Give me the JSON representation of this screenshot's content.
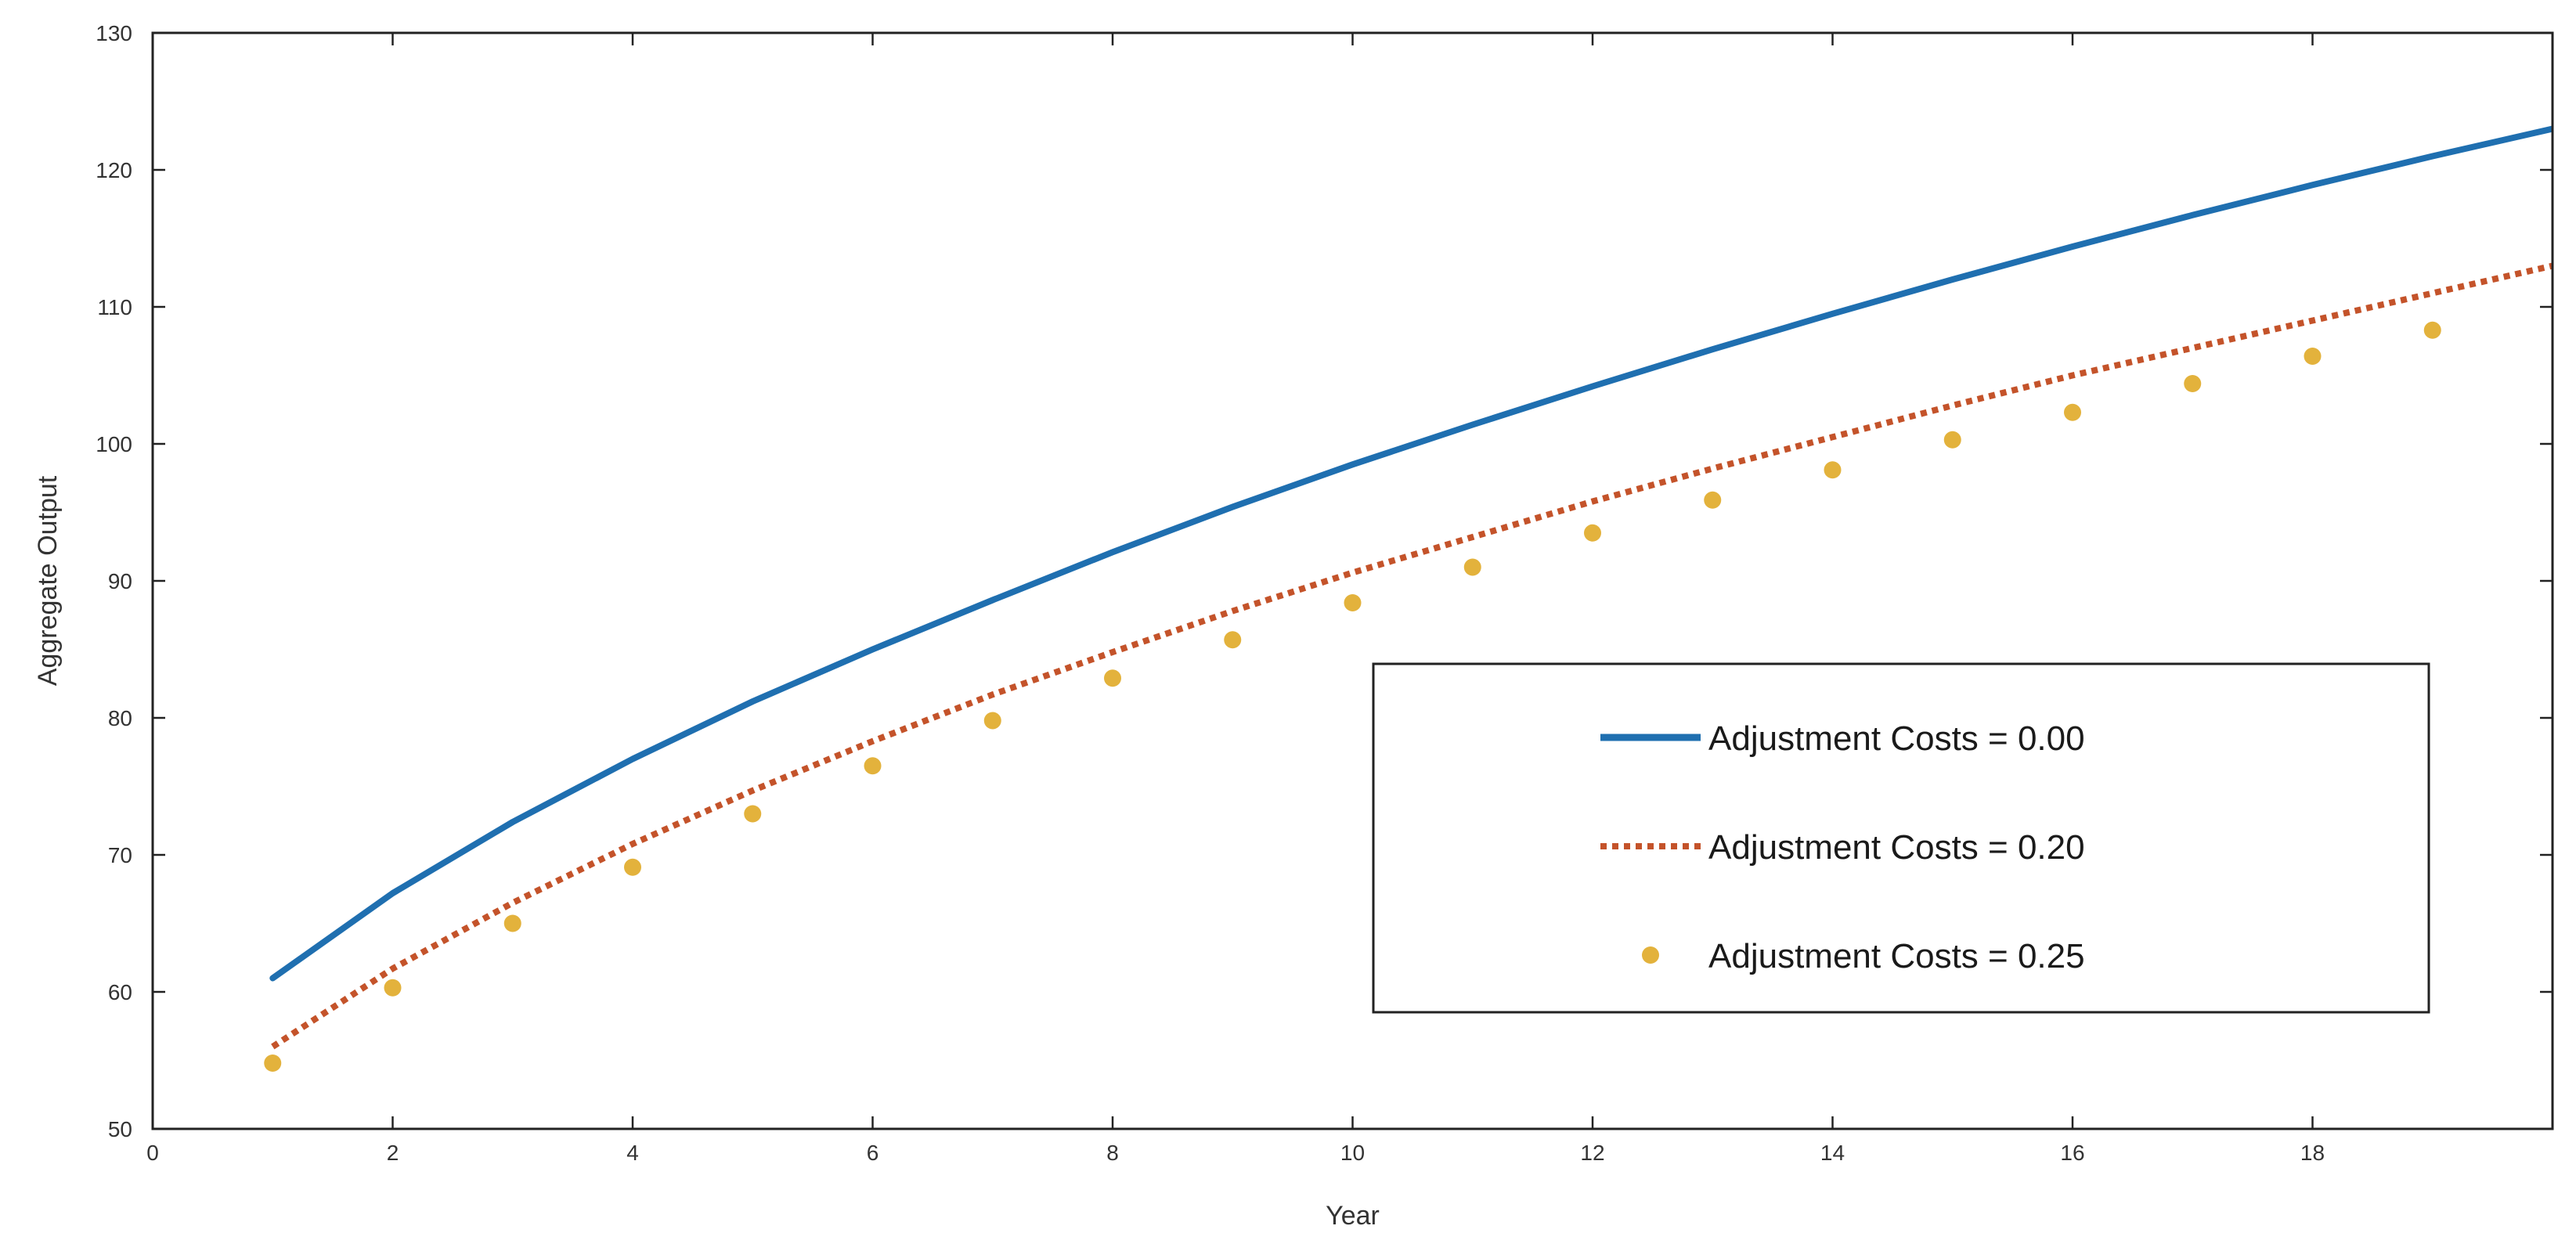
{
  "chart_data": {
    "type": "line",
    "title": "",
    "xlabel": "Year",
    "ylabel": "Aggregate Output",
    "xlim": [
      0,
      20
    ],
    "ylim": [
      50,
      130
    ],
    "xticks": [
      0,
      2,
      4,
      6,
      8,
      10,
      12,
      14,
      16,
      18
    ],
    "yticks": [
      50,
      60,
      70,
      80,
      90,
      100,
      110,
      120,
      130
    ],
    "grid": false,
    "legend_position": "lower-right",
    "series": [
      {
        "name": "Adjustment Costs = 0.00",
        "style": "solid",
        "color": "#1f6fb0",
        "x": [
          1,
          2,
          3,
          4,
          5,
          6,
          7,
          8,
          9,
          10,
          11,
          12,
          13,
          14,
          15,
          16,
          17,
          18,
          19,
          20
        ],
        "y": [
          61.0,
          67.2,
          72.4,
          77.0,
          81.2,
          85.0,
          88.6,
          92.1,
          95.4,
          98.5,
          101.4,
          104.2,
          106.9,
          109.5,
          112.0,
          114.4,
          116.7,
          118.9,
          121.0,
          123.0
        ]
      },
      {
        "name": "Adjustment Costs = 0.20",
        "style": "dotted",
        "color": "#c4532a",
        "x": [
          1,
          2,
          3,
          4,
          5,
          6,
          7,
          8,
          9,
          10,
          11,
          12,
          13,
          14,
          15,
          16,
          17,
          18,
          19,
          20
        ],
        "y": [
          56.0,
          61.7,
          66.5,
          70.8,
          74.7,
          78.3,
          81.7,
          84.8,
          87.8,
          90.6,
          93.2,
          95.8,
          98.2,
          100.5,
          102.8,
          105.0,
          107.0,
          109.0,
          111.0,
          113.0
        ]
      },
      {
        "name": "Adjustment Costs = 0.25",
        "style": "markers",
        "color": "#e3b23c",
        "x": [
          1,
          2,
          3,
          4,
          5,
          6,
          7,
          8,
          9,
          10,
          11,
          12,
          13,
          14,
          15,
          16,
          17,
          18,
          19
        ],
        "y": [
          54.8,
          60.3,
          65.0,
          69.1,
          73.0,
          76.5,
          79.8,
          82.9,
          85.7,
          88.4,
          91.0,
          93.5,
          95.9,
          98.1,
          100.3,
          102.3,
          104.4,
          106.4,
          108.3
        ]
      }
    ]
  }
}
